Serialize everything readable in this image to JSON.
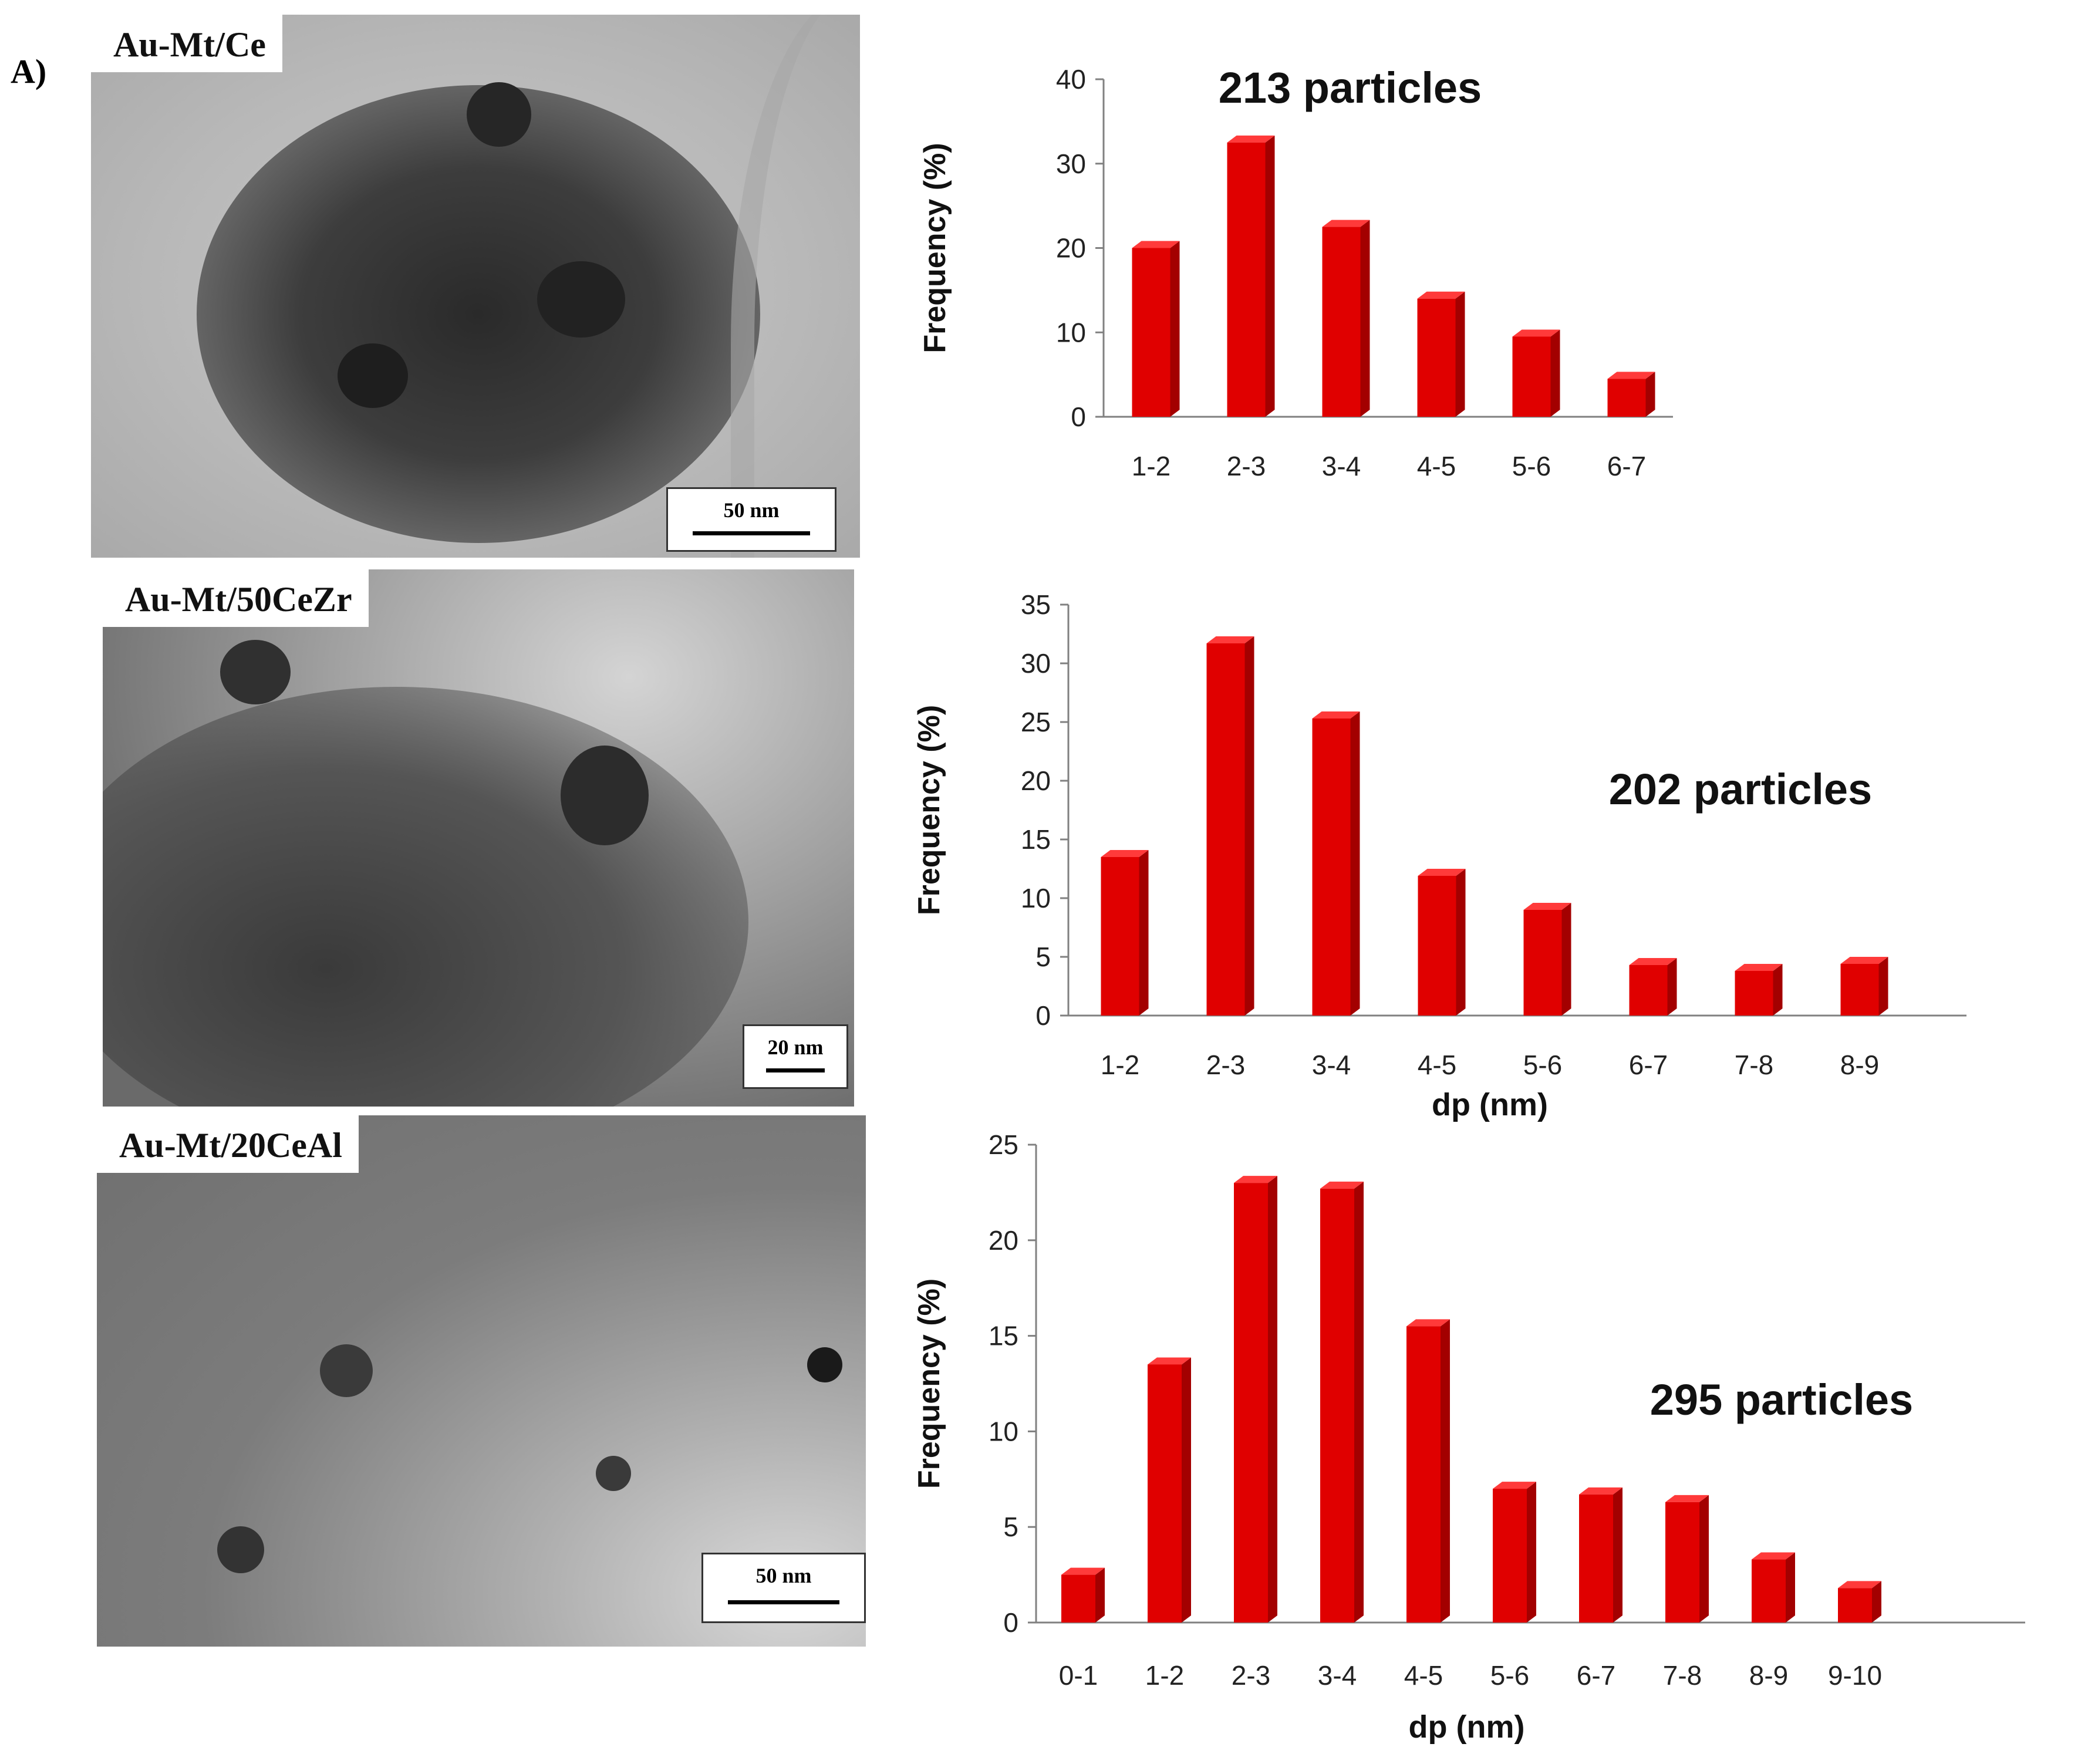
{
  "figure_label": "A)",
  "colors": {
    "bar_front": "#e00000",
    "bar_side": "#a30000",
    "bar_top": "#ff3a3a",
    "axis": "#808080"
  },
  "tem_images": [
    {
      "label": "Au-Mt/Ce",
      "scale_text": "50 nm"
    },
    {
      "label": "Au-Mt/50CeZr",
      "scale_text": "20 nm"
    },
    {
      "label": "Au-Mt/20CeAl",
      "scale_text": "50 nm"
    }
  ],
  "chart_data": [
    {
      "type": "bar",
      "annotation": "213 particles",
      "categories": [
        "1-2",
        "2-3",
        "3-4",
        "4-5",
        "5-6",
        "6-7"
      ],
      "values": [
        20,
        32.5,
        22.5,
        14,
        9.5,
        4.5
      ],
      "ylabel": "Frequency (%)",
      "xlabel": "",
      "ylim": [
        0,
        40
      ],
      "yticks": [
        0,
        10,
        20,
        30,
        40
      ]
    },
    {
      "type": "bar",
      "annotation": "202 particles",
      "categories": [
        "1-2",
        "2-3",
        "3-4",
        "4-5",
        "5-6",
        "6-7",
        "7-8",
        "8-9"
      ],
      "values": [
        13.5,
        31.7,
        25.3,
        11.9,
        9,
        4.3,
        3.8,
        4.4
      ],
      "ylabel": "Frequency (%)",
      "xlabel": "dp (nm)",
      "ylim": [
        0,
        35
      ],
      "yticks": [
        0,
        5,
        10,
        15,
        20,
        25,
        30,
        35
      ]
    },
    {
      "type": "bar",
      "annotation": "295 particles",
      "categories": [
        "0-1",
        "1-2",
        "2-3",
        "3-4",
        "4-5",
        "5-6",
        "6-7",
        "7-8",
        "8-9",
        "9-10"
      ],
      "values": [
        2.5,
        13.5,
        23,
        22.7,
        15.5,
        7,
        6.7,
        6.3,
        3.3,
        1.8
      ],
      "ylabel": "Frequency (%)",
      "xlabel": "dp (nm)",
      "ylim": [
        0,
        25
      ],
      "yticks": [
        0,
        5,
        10,
        15,
        20,
        25
      ]
    }
  ]
}
